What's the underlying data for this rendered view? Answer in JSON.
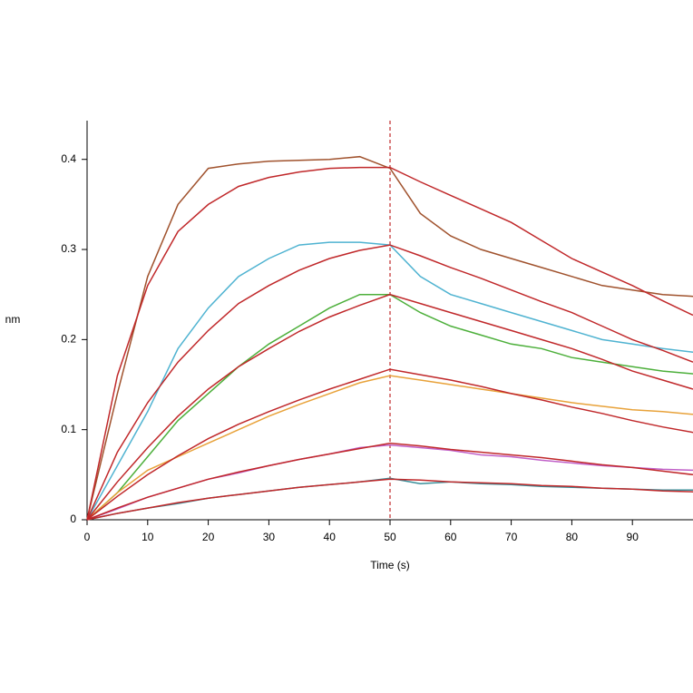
{
  "chart_data": {
    "type": "line",
    "xlabel": "Time (s)",
    "ylabel": "nm",
    "x": [
      0,
      5,
      10,
      15,
      20,
      25,
      30,
      35,
      40,
      45,
      50,
      55,
      60,
      65,
      70,
      75,
      80,
      85,
      90,
      95,
      100
    ],
    "xlim": [
      0,
      100
    ],
    "xticks": [
      0,
      10,
      20,
      30,
      40,
      50,
      60,
      70,
      80,
      90
    ],
    "ylim": [
      0,
      0.443
    ],
    "yticks": [
      0,
      0.1,
      0.2,
      0.3,
      0.4
    ],
    "marker_x": 50,
    "marker_color": "#c0282a",
    "series": [
      {
        "color": "#a0522d",
        "values": [
          0,
          0.14,
          0.27,
          0.35,
          0.39,
          0.395,
          0.398,
          0.399,
          0.4,
          0.403,
          0.39,
          0.34,
          0.315,
          0.3,
          0.29,
          0.28,
          0.27,
          0.26,
          0.255,
          0.25,
          0.248
        ]
      },
      {
        "color": "#4fb3d1",
        "values": [
          0,
          0.06,
          0.12,
          0.19,
          0.235,
          0.27,
          0.29,
          0.305,
          0.308,
          0.308,
          0.305,
          0.27,
          0.25,
          0.24,
          0.23,
          0.22,
          0.21,
          0.2,
          0.195,
          0.19,
          0.186
        ]
      },
      {
        "color": "#4caf3a",
        "values": [
          0,
          0.03,
          0.07,
          0.11,
          0.14,
          0.17,
          0.195,
          0.215,
          0.235,
          0.25,
          0.25,
          0.23,
          0.215,
          0.205,
          0.195,
          0.19,
          0.18,
          0.175,
          0.17,
          0.165,
          0.162
        ]
      },
      {
        "color": "#e8a23a",
        "values": [
          0,
          0.03,
          0.055,
          0.07,
          0.085,
          0.1,
          0.115,
          0.128,
          0.14,
          0.152,
          0.16,
          0.155,
          0.15,
          0.145,
          0.14,
          0.135,
          0.13,
          0.126,
          0.122,
          0.12,
          0.117
        ]
      },
      {
        "color": "#c060c8",
        "values": [
          0,
          0.012,
          0.025,
          0.035,
          0.045,
          0.052,
          0.06,
          0.067,
          0.073,
          0.08,
          0.083,
          0.08,
          0.077,
          0.072,
          0.07,
          0.066,
          0.063,
          0.06,
          0.058,
          0.056,
          0.055
        ]
      },
      {
        "color": "#3a8f9a",
        "values": [
          0,
          0.007,
          0.013,
          0.018,
          0.024,
          0.028,
          0.032,
          0.036,
          0.039,
          0.042,
          0.046,
          0.04,
          0.042,
          0.04,
          0.039,
          0.037,
          0.036,
          0.035,
          0.034,
          0.033,
          0.033
        ]
      },
      {
        "color": "#c0282a",
        "values": [
          0,
          0.16,
          0.26,
          0.32,
          0.35,
          0.37,
          0.38,
          0.386,
          0.39,
          0.391,
          0.391,
          0.375,
          0.36,
          0.345,
          0.33,
          0.31,
          0.29,
          0.275,
          0.26,
          0.243,
          0.227
        ]
      },
      {
        "color": "#c0282a",
        "values": [
          0,
          0.075,
          0.13,
          0.175,
          0.21,
          0.24,
          0.26,
          0.277,
          0.29,
          0.299,
          0.305,
          0.293,
          0.28,
          0.268,
          0.255,
          0.242,
          0.23,
          0.215,
          0.2,
          0.188,
          0.175
        ]
      },
      {
        "color": "#c0282a",
        "values": [
          0,
          0.042,
          0.08,
          0.115,
          0.145,
          0.17,
          0.19,
          0.209,
          0.225,
          0.238,
          0.25,
          0.24,
          0.23,
          0.22,
          0.21,
          0.2,
          0.19,
          0.178,
          0.165,
          0.155,
          0.145
        ]
      },
      {
        "color": "#c0282a",
        "values": [
          0,
          0.026,
          0.05,
          0.071,
          0.09,
          0.106,
          0.12,
          0.133,
          0.145,
          0.156,
          0.167,
          0.161,
          0.155,
          0.148,
          0.14,
          0.133,
          0.125,
          0.118,
          0.11,
          0.103,
          0.097
        ]
      },
      {
        "color": "#c0282a",
        "values": [
          0,
          0.013,
          0.025,
          0.035,
          0.045,
          0.053,
          0.06,
          0.067,
          0.073,
          0.079,
          0.085,
          0.082,
          0.078,
          0.075,
          0.072,
          0.069,
          0.065,
          0.061,
          0.058,
          0.054,
          0.05
        ]
      },
      {
        "color": "#c0282a",
        "values": [
          0,
          0.007,
          0.013,
          0.019,
          0.024,
          0.028,
          0.032,
          0.036,
          0.039,
          0.042,
          0.045,
          0.044,
          0.042,
          0.041,
          0.04,
          0.038,
          0.037,
          0.035,
          0.034,
          0.032,
          0.031
        ]
      }
    ]
  }
}
